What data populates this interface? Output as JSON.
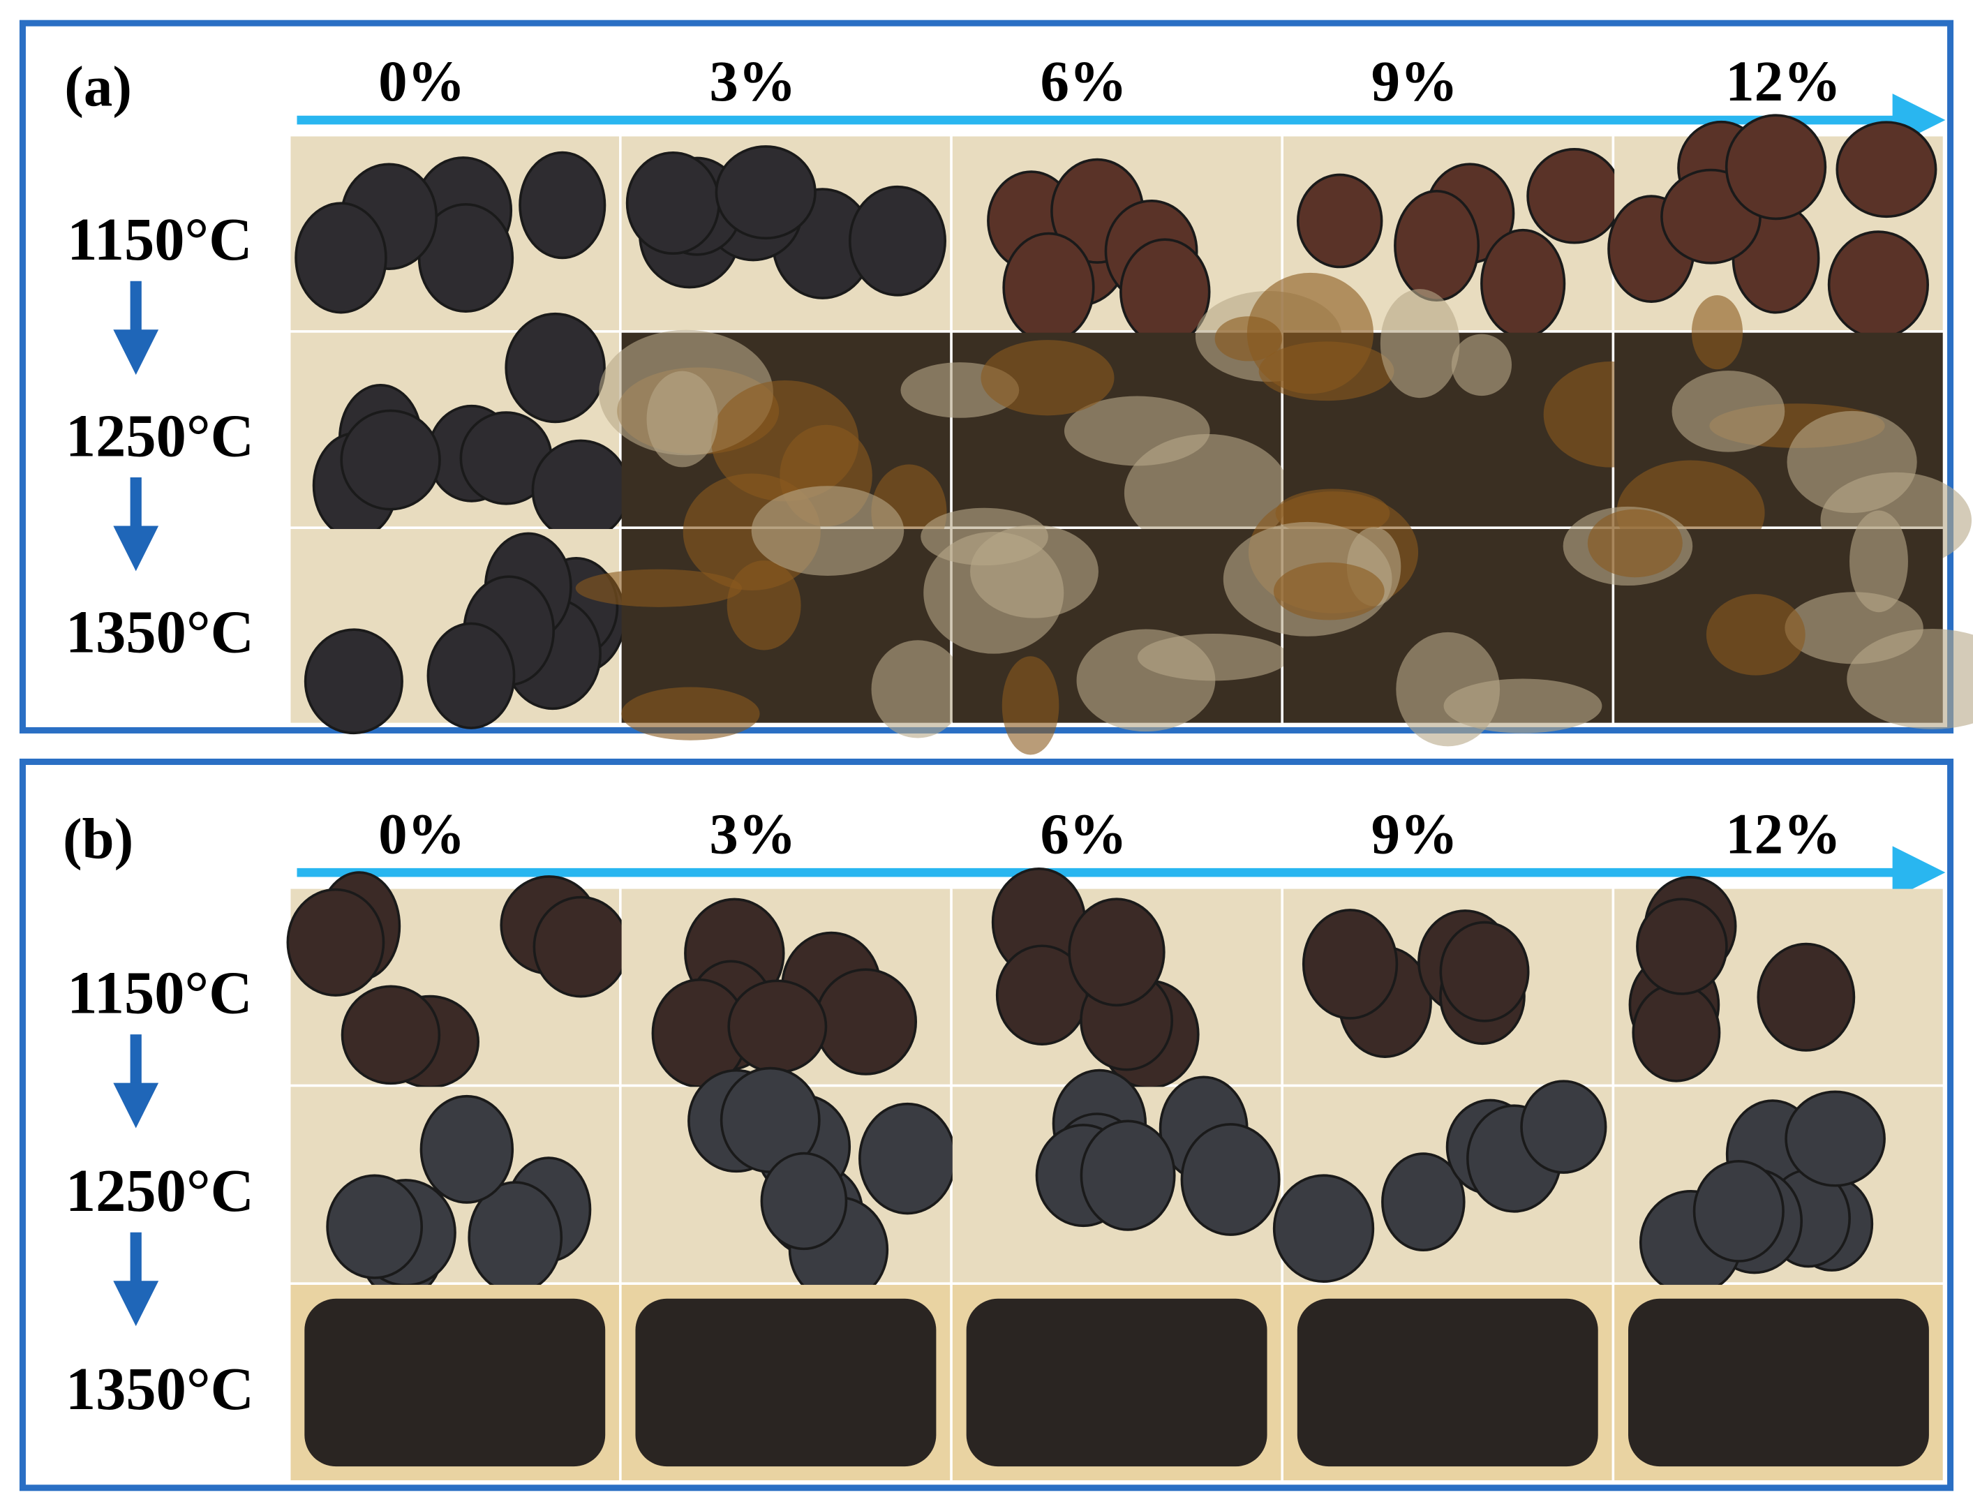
{
  "panels": [
    {
      "label": "(a)",
      "columns": [
        "0%",
        "3%",
        "6%",
        "9%",
        "12%"
      ],
      "rows": [
        "1150°C",
        "1250°C",
        "1350°C"
      ]
    },
    {
      "label": "(b)",
      "columns": [
        "0%",
        "3%",
        "6%",
        "9%",
        "12%"
      ],
      "rows": [
        "1150°C",
        "1250°C",
        "1350°C"
      ]
    }
  ]
}
